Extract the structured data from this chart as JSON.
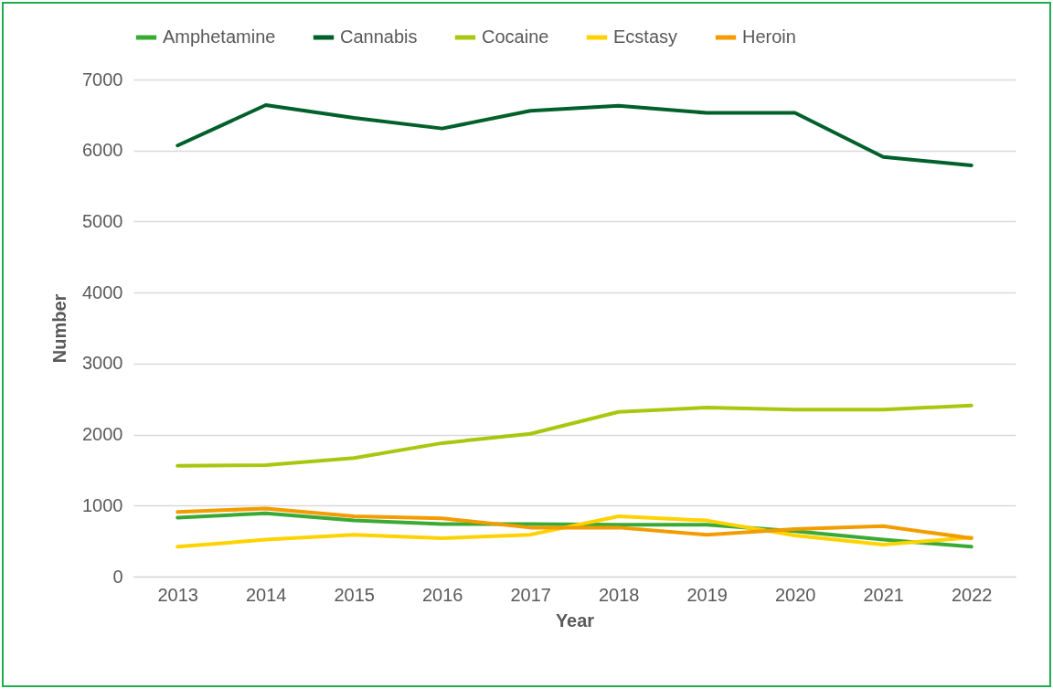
{
  "chart_data": {
    "type": "line",
    "xlabel": "Year",
    "ylabel": "Number",
    "categories": [
      "2013",
      "2014",
      "2015",
      "2016",
      "2017",
      "2018",
      "2019",
      "2020",
      "2021",
      "2022"
    ],
    "series": [
      {
        "name": "Amphetamine",
        "color": "#3aaa35",
        "values": [
          830,
          890,
          790,
          740,
          740,
          730,
          730,
          640,
          520,
          420
        ]
      },
      {
        "name": "Cannabis",
        "color": "#00602b",
        "values": [
          6070,
          6640,
          6460,
          6310,
          6560,
          6630,
          6530,
          6530,
          5910,
          5790
        ]
      },
      {
        "name": "Cocaine",
        "color": "#a8c80f",
        "values": [
          1560,
          1570,
          1670,
          1880,
          2010,
          2320,
          2380,
          2350,
          2350,
          2410
        ]
      },
      {
        "name": "Ecstasy",
        "color": "#ffd200",
        "values": [
          420,
          520,
          590,
          540,
          590,
          850,
          790,
          580,
          450,
          550
        ]
      },
      {
        "name": "Heroin",
        "color": "#f39c00",
        "values": [
          910,
          960,
          850,
          820,
          690,
          690,
          590,
          670,
          710,
          540
        ]
      }
    ],
    "ylim": [
      0,
      7000
    ],
    "yticks": [
      0,
      1000,
      2000,
      3000,
      4000,
      5000,
      6000,
      7000
    ],
    "grid": "y",
    "legend": "top",
    "marker": "none",
    "line_style": "solid"
  }
}
